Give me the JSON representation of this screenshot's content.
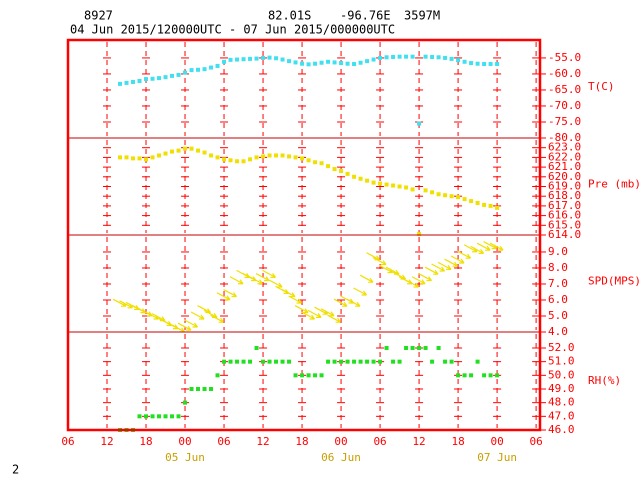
{
  "header": {
    "station": "8927",
    "lat": "82.01S",
    "lon": "-96.76E",
    "elev": "3597M",
    "period": "04 Jun 2015/120000UTC - 07 Jun 2015/000000UTC"
  },
  "page_number": "2",
  "chart_data": [
    {
      "type": "scatter",
      "y_label": "T(C)",
      "color": "#40e0f0",
      "x": [
        8,
        9,
        10,
        11,
        12,
        13,
        14,
        15,
        16,
        17,
        18,
        19,
        20,
        21,
        22,
        23,
        24,
        25,
        26,
        27,
        28,
        29,
        30,
        31,
        32,
        33,
        34,
        35,
        36,
        37,
        38,
        39,
        40,
        41,
        42,
        43,
        44,
        45,
        46,
        47,
        48,
        49,
        50,
        51,
        52,
        53,
        54,
        55,
        56,
        57,
        58,
        59,
        60,
        61,
        62,
        63,
        64,
        65,
        66
      ],
      "values": [
        -63.1,
        -62.8,
        -62.5,
        -62.2,
        -61.6,
        -61.5,
        -61.3,
        -61.0,
        -60.6,
        -60.3,
        -59.6,
        -58.8,
        -58.7,
        -58.5,
        -58.0,
        -57.5,
        -56.2,
        -55.6,
        -55.5,
        -55.4,
        -55.3,
        -55.2,
        -55.0,
        -54.9,
        -55.1,
        -55.5,
        -56.0,
        -56.4,
        -56.8,
        -57.0,
        -56.8,
        -56.5,
        -56.2,
        -56.4,
        -56.6,
        -56.8,
        -56.9,
        -56.5,
        -56.0,
        -55.5,
        -55.0,
        -54.8,
        -54.7,
        -54.6,
        -54.6,
        -54.6,
        -75.5,
        -54.6,
        -54.7,
        -54.8,
        -55.0,
        -55.3,
        -55.7,
        -56.2,
        -56.6,
        -56.8,
        -56.9,
        -56.9,
        -56.9
      ],
      "xlim": [
        0,
        72.6
      ],
      "xticks": [
        0,
        6,
        12,
        18,
        24,
        30,
        36,
        42,
        48,
        54,
        60,
        66,
        72
      ],
      "ylim": [
        -80,
        -49.4
      ],
      "yticks": [
        {
          "value": -80,
          "label": "-80.0"
        },
        {
          "value": -75,
          "label": "-75.0"
        },
        {
          "value": -70,
          "label": "-70.0"
        },
        {
          "value": -65,
          "label": "-65.0"
        },
        {
          "value": -60,
          "label": "-60.0"
        },
        {
          "value": -55,
          "label": "-55.0"
        }
      ]
    },
    {
      "type": "scatter",
      "y_label": "Pre (mb)",
      "color": "#f0e000",
      "x": [
        8,
        9,
        10,
        11,
        12,
        13,
        14,
        15,
        16,
        17,
        18,
        19,
        20,
        21,
        22,
        23,
        24,
        25,
        26,
        27,
        28,
        29,
        30,
        31,
        32,
        33,
        34,
        35,
        36,
        37,
        38,
        39,
        40,
        41,
        42,
        43,
        44,
        45,
        46,
        47,
        48,
        49,
        50,
        51,
        52,
        53,
        54,
        55,
        56,
        57,
        58,
        59,
        60,
        61,
        62,
        63,
        64,
        65,
        66
      ],
      "values": [
        622.0,
        622.0,
        621.9,
        621.9,
        621.8,
        622.0,
        622.2,
        622.4,
        622.6,
        622.7,
        622.9,
        622.9,
        622.7,
        622.5,
        622.2,
        622.0,
        621.8,
        621.7,
        621.6,
        621.6,
        621.8,
        622.0,
        622.1,
        622.2,
        622.2,
        622.2,
        622.1,
        622.0,
        621.9,
        621.7,
        621.5,
        621.4,
        621.1,
        620.8,
        620.6,
        620.3,
        620.0,
        619.8,
        619.6,
        619.4,
        619.3,
        619.2,
        619.1,
        619.0,
        618.9,
        618.7,
        614.1,
        618.6,
        618.4,
        618.2,
        618.1,
        618.0,
        617.9,
        617.7,
        617.5,
        617.3,
        617.1,
        617.0,
        616.8
      ],
      "xlim": [
        0,
        72.6
      ],
      "xticks": [
        0,
        6,
        12,
        18,
        24,
        30,
        36,
        42,
        48,
        54,
        60,
        66,
        72
      ],
      "ylim": [
        614,
        624
      ],
      "yticks": [
        {
          "value": 614,
          "label": "614.0"
        },
        {
          "value": 615,
          "label": "615.0"
        },
        {
          "value": 616,
          "label": "616.0"
        },
        {
          "value": 617,
          "label": "617.0"
        },
        {
          "value": 618,
          "label": "618.0"
        },
        {
          "value": 619,
          "label": "619.0"
        },
        {
          "value": 620,
          "label": "620.0"
        },
        {
          "value": 621,
          "label": "621.0"
        },
        {
          "value": 622,
          "label": "622.0"
        },
        {
          "value": 623,
          "label": "623.0"
        }
      ]
    },
    {
      "type": "wind",
      "y_label": "SPD(MPS)",
      "color": "#f0e000",
      "x": [
        8,
        9,
        10,
        11,
        12,
        13,
        14,
        15,
        16,
        17,
        18,
        19,
        20,
        21,
        22,
        23,
        24,
        25,
        26,
        27,
        28,
        29,
        30,
        31,
        32,
        33,
        34,
        35,
        36,
        37,
        38,
        39,
        40,
        41,
        42,
        43,
        44,
        45,
        46,
        47,
        48,
        49,
        50,
        51,
        52,
        53,
        54,
        55,
        56,
        57,
        58,
        59,
        60,
        61,
        62,
        63,
        64,
        65,
        66
      ],
      "values": [
        5.8,
        5.7,
        5.6,
        5.4,
        5.2,
        5.0,
        4.9,
        4.6,
        4.4,
        4.2,
        4.3,
        4.5,
        5.0,
        5.4,
        5.1,
        4.8,
        6.2,
        6.4,
        7.2,
        7.6,
        7.4,
        7.2,
        7.4,
        7.6,
        7.0,
        6.6,
        6.4,
        6.0,
        5.4,
        5.0,
        5.1,
        5.3,
        5.2,
        4.8,
        5.8,
        6.0,
        5.8,
        6.5,
        7.3,
        8.7,
        8.4,
        7.9,
        7.8,
        7.5,
        7.2,
        7.0,
        7.2,
        7.4,
        7.8,
        8.0,
        8.1,
        8.3,
        8.5,
        8.8,
        9.2,
        9.1,
        9.3,
        9.4,
        9.3
      ],
      "xlim": [
        0,
        72.6
      ],
      "xticks": [
        0,
        6,
        12,
        18,
        24,
        30,
        36,
        42,
        48,
        54,
        60,
        66,
        72
      ],
      "ylim": [
        4,
        10.06
      ],
      "yticks": [
        {
          "value": 4,
          "label": "4.0"
        },
        {
          "value": 5,
          "label": "5.0"
        },
        {
          "value": 6,
          "label": "6.0"
        },
        {
          "value": 7,
          "label": "7.0"
        },
        {
          "value": 8,
          "label": "8.0"
        },
        {
          "value": 9,
          "label": "9.0"
        }
      ]
    },
    {
      "type": "scatter",
      "y_label": "RH(%)",
      "color": "#20e020",
      "x": [
        8,
        9,
        10,
        11,
        12,
        13,
        14,
        15,
        16,
        17,
        18,
        19,
        20,
        21,
        22,
        23,
        24,
        25,
        26,
        27,
        28,
        29,
        30,
        31,
        32,
        33,
        34,
        35,
        36,
        37,
        38,
        39,
        40,
        41,
        42,
        43,
        44,
        45,
        46,
        47,
        48,
        49,
        50,
        51,
        52,
        53,
        54,
        55,
        56,
        57,
        58,
        59,
        60,
        61,
        62,
        63,
        64,
        65,
        66
      ],
      "values": [
        46,
        46,
        46,
        47,
        47,
        47,
        47,
        47,
        47,
        47,
        48,
        49,
        49,
        49,
        49,
        50,
        51,
        51,
        51,
        51,
        51,
        52,
        51,
        51,
        51,
        51,
        51,
        50,
        50,
        50,
        50,
        50,
        51,
        51,
        51,
        51,
        51,
        51,
        51,
        51,
        51,
        52,
        51,
        51,
        52,
        52,
        52,
        52,
        51,
        52,
        51,
        51,
        50,
        50,
        50,
        51,
        50,
        50,
        50
      ],
      "xlim": [
        0,
        72.6
      ],
      "xticks": [
        {
          "value": 0,
          "label": "06"
        },
        {
          "value": 6,
          "label": "12"
        },
        {
          "value": 12,
          "label": "18"
        },
        {
          "value": 18,
          "label": "00"
        },
        {
          "value": 24,
          "label": "06"
        },
        {
          "value": 30,
          "label": "12"
        },
        {
          "value": 36,
          "label": "18"
        },
        {
          "value": 42,
          "label": "00"
        },
        {
          "value": 48,
          "label": "06"
        },
        {
          "value": 54,
          "label": "12"
        },
        {
          "value": 60,
          "label": "18"
        },
        {
          "value": 66,
          "label": "00"
        },
        {
          "value": 72,
          "label": "06"
        }
      ],
      "date_labels": [
        {
          "value": 18,
          "label": "05 Jun"
        },
        {
          "value": 42,
          "label": "06 Jun"
        },
        {
          "value": 66,
          "label": "07 Jun"
        }
      ],
      "ylim": [
        46,
        53.17
      ],
      "yticks": [
        {
          "value": 46,
          "label": "46.0"
        },
        {
          "value": 47,
          "label": "47.0"
        },
        {
          "value": 48,
          "label": "48.0"
        },
        {
          "value": 49,
          "label": "49.0"
        },
        {
          "value": 50,
          "label": "50.0"
        },
        {
          "value": 51,
          "label": "51.0"
        },
        {
          "value": 52,
          "label": "52.0"
        }
      ]
    }
  ]
}
